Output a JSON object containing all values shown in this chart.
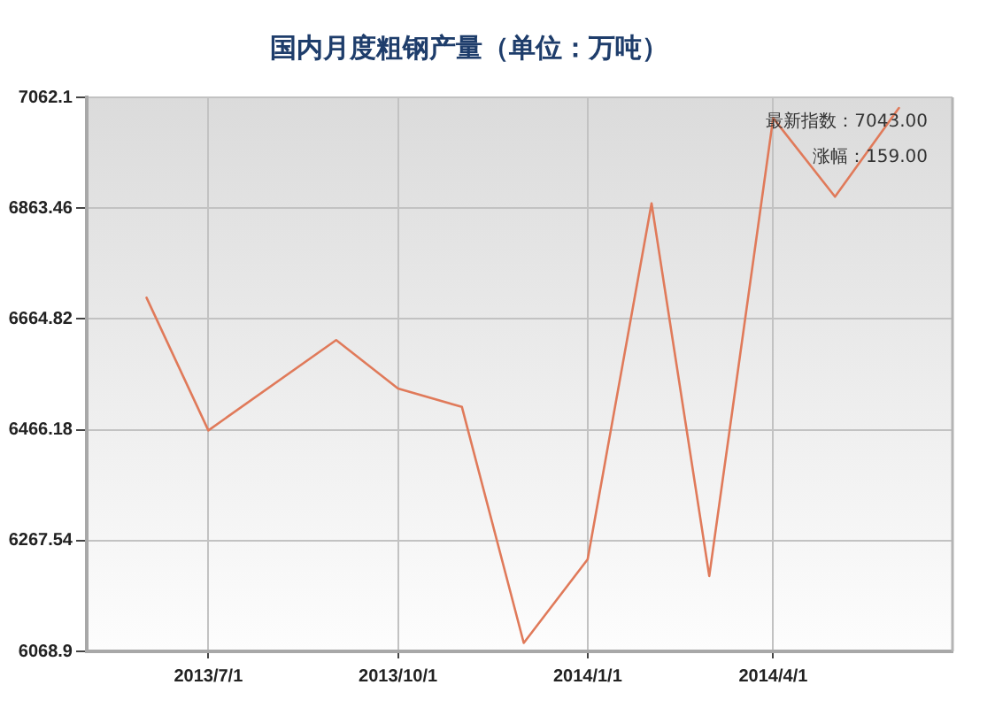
{
  "chart_data": {
    "type": "line",
    "title": "国内月度粗钢产量（单位：万吨）",
    "x": [
      "2013-06-01",
      "2013-07-01",
      "2013-09-01",
      "2013-10-01",
      "2013-11-01",
      "2013-12-01",
      "2014-01-01",
      "2014-02-01",
      "2014-03-01",
      "2014-04-01",
      "2014-05-01",
      "2014-06-01"
    ],
    "series": [
      {
        "color": "#e07a5a",
        "values": [
          6703,
          6465,
          6627,
          6540,
          6507,
          6084,
          6234,
          6872,
          6204,
          7025,
          6884,
          7043
        ]
      }
    ],
    "xlim": [
      "2013-05-03",
      "2014-06-27"
    ],
    "xticks": [
      {
        "value": "2013-07-01",
        "label": "2013/7/1"
      },
      {
        "value": "2013-10-01",
        "label": "2013/10/1"
      },
      {
        "value": "2014-01-01",
        "label": "2014/1/1"
      },
      {
        "value": "2014-04-01",
        "label": "2014/4/1"
      }
    ],
    "ylim": [
      6068.9,
      7062.1
    ],
    "yticks": [
      6068.9,
      6267.54,
      6466.18,
      6664.82,
      6863.46,
      7062.1
    ],
    "grid": true,
    "annotations": [
      "最新指数：7043.00",
      "涨幅：159.00"
    ]
  }
}
